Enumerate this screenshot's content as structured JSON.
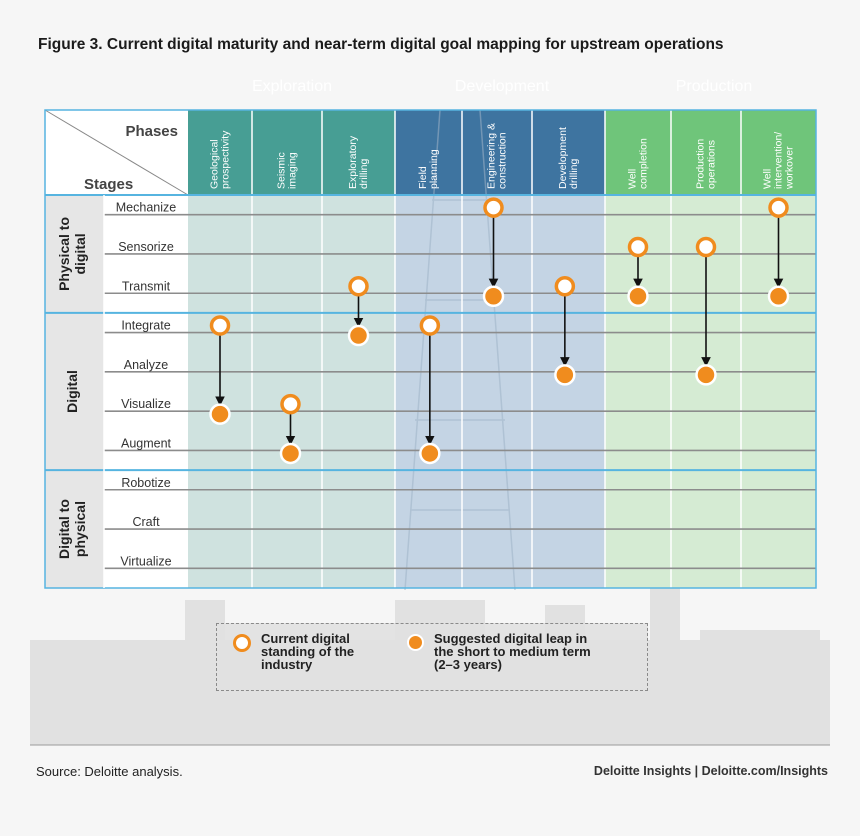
{
  "title": "Figure 3. Current digital maturity and near-term digital goal mapping for upstream operations",
  "header": {
    "phases": "Phases",
    "stages": "Stages"
  },
  "phase_groups": [
    {
      "name": "Exploration",
      "color": "#1b7f73",
      "col_color": "#cfe2df",
      "head_color": "#479e94",
      "columns": [
        "Geological prospectivity",
        "Seismic imaging",
        "Exploratory drilling"
      ]
    },
    {
      "name": "Development",
      "color": "#1a77a8",
      "col_color": "#c4d4e4",
      "head_color": "#3e74a0",
      "columns": [
        "Field planning",
        "Engineering & construction",
        "Development drilling"
      ]
    },
    {
      "name": "Production",
      "color": "#3fae49",
      "col_color": "#d5ebd3",
      "head_color": "#6fc57a",
      "columns": [
        "Well completion",
        "Production operations",
        "Well intervention/ workover"
      ]
    }
  ],
  "stage_groups": [
    {
      "name": "Physical to digital",
      "stages": [
        "Mechanize",
        "Sensorize",
        "Transmit"
      ]
    },
    {
      "name": "Digital",
      "stages": [
        "Integrate",
        "Analyze",
        "Visualize",
        "Augment"
      ]
    },
    {
      "name": "Digital to physical",
      "stages": [
        "Robotize",
        "Craft",
        "Virtualize"
      ]
    }
  ],
  "mappings": [
    {
      "column": "Geological prospectivity",
      "current": "Integrate",
      "suggested": "Visualize"
    },
    {
      "column": "Seismic imaging",
      "current": "Visualize",
      "suggested": "Augment"
    },
    {
      "column": "Exploratory drilling",
      "current": "Transmit",
      "suggested": "Integrate"
    },
    {
      "column": "Field planning",
      "current": "Integrate",
      "suggested": "Augment"
    },
    {
      "column": "Engineering & construction",
      "current": "Mechanize",
      "suggested": "Transmit"
    },
    {
      "column": "Development drilling",
      "current": "Transmit",
      "suggested": "Analyze"
    },
    {
      "column": "Well completion",
      "current": "Sensorize",
      "suggested": "Transmit"
    },
    {
      "column": "Production operations",
      "current": "Sensorize",
      "suggested": "Analyze"
    },
    {
      "column": "Well intervention/ workover",
      "current": "Mechanize",
      "suggested": "Transmit"
    }
  ],
  "legend": {
    "current": "Current digital\nstanding of the\nindustry",
    "suggested": "Suggested digital leap in\nthe short to medium term\n(2–3 years)"
  },
  "colors": {
    "marker": "#f08c1e",
    "grid_border": "#56b4e0",
    "line": "#8c8c8c"
  },
  "footer": {
    "source": "Source: Deloitte analysis.",
    "brand": "Deloitte Insights |  Deloitte.com/Insights"
  }
}
